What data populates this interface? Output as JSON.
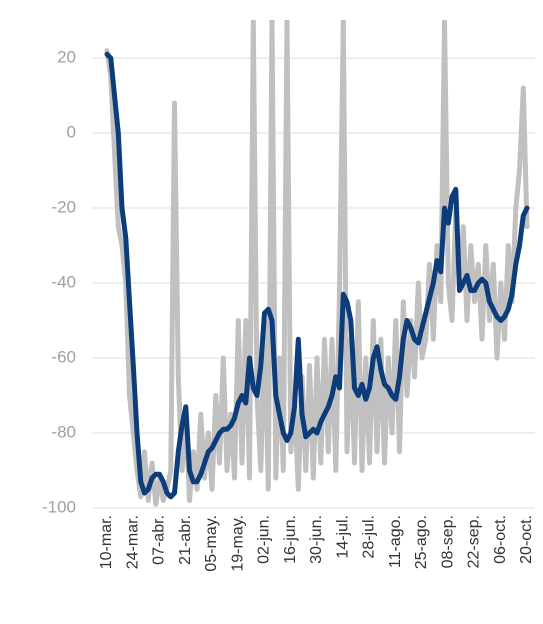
{
  "chart_data": {
    "type": "line",
    "categories": [
      "10-mar.",
      null,
      null,
      null,
      null,
      null,
      null,
      "24-mar.",
      null,
      null,
      null,
      null,
      null,
      null,
      "07-abr.",
      null,
      null,
      null,
      null,
      null,
      null,
      "21-abr.",
      null,
      null,
      null,
      null,
      null,
      null,
      "05-may.",
      null,
      null,
      null,
      null,
      null,
      null,
      "19-may.",
      null,
      null,
      null,
      null,
      null,
      null,
      "02-jun.",
      null,
      null,
      null,
      null,
      null,
      null,
      "16-jun.",
      null,
      null,
      null,
      null,
      null,
      null,
      "30-jun.",
      null,
      null,
      null,
      null,
      null,
      null,
      "14-jul.",
      null,
      null,
      null,
      null,
      null,
      null,
      "28-jul.",
      null,
      null,
      null,
      null,
      null,
      null,
      "11-ago.",
      null,
      null,
      null,
      null,
      null,
      null,
      "25-ago.",
      null,
      null,
      null,
      null,
      null,
      null,
      "08-sep.",
      null,
      null,
      null,
      null,
      null,
      null,
      "22-sep.",
      null,
      null,
      null,
      null,
      null,
      null,
      "06-oct.",
      null,
      null,
      null,
      null,
      null,
      null,
      "20-oct."
    ],
    "series": [
      {
        "color": "#c0c0c0",
        "values": [
          22,
          15,
          -5,
          -25,
          -30,
          -40,
          -70,
          -80,
          -90,
          -97,
          -85,
          -98,
          -88,
          -99,
          -92,
          -98,
          -95,
          -90,
          8,
          -65,
          -90,
          -75,
          -98,
          -85,
          -95,
          -75,
          -92,
          -80,
          -95,
          -70,
          -88,
          -60,
          -90,
          -75,
          -92,
          -50,
          -88,
          -50,
          -92,
          30,
          -70,
          -90,
          -50,
          -95,
          30,
          -92,
          -60,
          -90,
          30,
          -85,
          -70,
          -95,
          -65,
          -90,
          -62,
          -92,
          -60,
          -88,
          -55,
          -85,
          -55,
          -90,
          -42,
          30,
          -85,
          -55,
          -88,
          -45,
          -90,
          -60,
          -88,
          -50,
          -85,
          -55,
          -88,
          -60,
          -80,
          -50,
          -85,
          -45,
          -70,
          -50,
          -65,
          -40,
          -60,
          -55,
          -35,
          -55,
          -30,
          -45,
          30,
          -40,
          -50,
          -20,
          -40,
          -25,
          -50,
          -30,
          -45,
          -35,
          -55,
          -30,
          -50,
          -35,
          -60,
          -40,
          -55,
          -30,
          -45,
          -20,
          -10,
          12,
          -25
        ]
      },
      {
        "color": "#0d3c7a",
        "values": [
          21,
          20,
          10,
          0,
          -20,
          -28,
          -45,
          -62,
          -80,
          -93,
          -96,
          -95,
          -92,
          -91,
          -91,
          -93,
          -96,
          -97,
          -96,
          -85,
          -78,
          -73,
          -90,
          -93,
          -93,
          -91,
          -88,
          -85,
          -84,
          -82,
          -80,
          -79,
          -79,
          -78,
          -76,
          -72,
          -70,
          -72,
          -60,
          -68,
          -70,
          -62,
          -48,
          -47,
          -50,
          -70,
          -75,
          -80,
          -82,
          -80,
          -73,
          -55,
          -75,
          -81,
          -80,
          -79,
          -80,
          -77,
          -75,
          -73,
          -70,
          -65,
          -68,
          -43,
          -45,
          -50,
          -68,
          -70,
          -67,
          -71,
          -68,
          -60,
          -57,
          -63,
          -67,
          -68,
          -70,
          -71,
          -65,
          -55,
          -50,
          -52,
          -55,
          -56,
          -52,
          -48,
          -44,
          -40,
          -34,
          -37,
          -20,
          -24,
          -17,
          -15,
          -42,
          -40,
          -38,
          -42,
          -42,
          -40,
          -39,
          -40,
          -45,
          -47,
          -49,
          -50,
          -49,
          -47,
          -43,
          -35,
          -30,
          -22,
          -20
        ]
      }
    ],
    "ylim": [
      -100,
      30
    ],
    "yticks": [
      -100,
      -80,
      -60,
      -40,
      -20,
      0,
      20
    ],
    "grid": true
  }
}
